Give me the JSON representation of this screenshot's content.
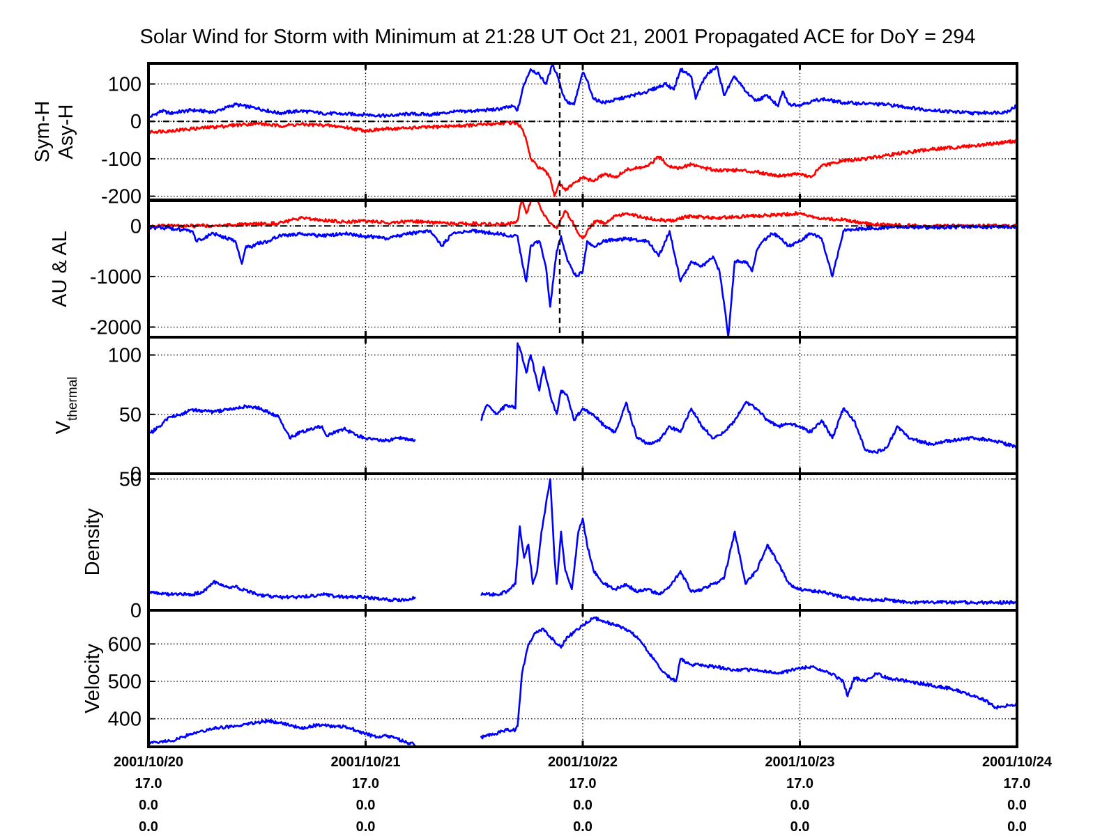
{
  "chart_data": {
    "title": "Solar Wind for Storm with Minimum at 21:28 UT Oct 21, 2001  Propagated ACE for DoY = 294",
    "type": "line",
    "grid": true,
    "x_tick_lines": [
      [
        "2001/10/20",
        "17.0",
        "0.0",
        "0.0"
      ],
      [
        "2001/10/21",
        "17.0",
        "0.0",
        "0.0"
      ],
      [
        "2001/10/22",
        "17.0",
        "0.0",
        "0.0"
      ],
      [
        "2001/10/23",
        "17.0",
        "0.0",
        "0.0"
      ],
      [
        "2001/10/24",
        "17.0",
        "0.0",
        "0.0"
      ]
    ],
    "xlim_days": [
      0,
      4
    ],
    "storm_minimum_day": 1.894,
    "panels": [
      {
        "ylabel_lines": [
          "Sym-H",
          "Asy-H"
        ],
        "ylim": [
          -210,
          155
        ],
        "yticks": [
          100,
          0,
          -100,
          -200
        ],
        "zero_line": true,
        "series": [
          {
            "color": "#0000ff",
            "x": [
              0.0,
              0.06,
              0.1,
              0.2,
              0.3,
              0.4,
              0.5,
              0.6,
              0.7,
              0.8,
              0.9,
              1.0,
              1.1,
              1.2,
              1.3,
              1.4,
              1.5,
              1.6,
              1.68,
              1.7,
              1.73,
              1.76,
              1.8,
              1.83,
              1.86,
              1.88,
              1.91,
              1.93,
              1.96,
              2.0,
              2.02,
              2.05,
              2.1,
              2.2,
              2.3,
              2.38,
              2.42,
              2.45,
              2.5,
              2.52,
              2.55,
              2.58,
              2.62,
              2.65,
              2.7,
              2.75,
              2.78,
              2.8,
              2.85,
              2.9,
              2.92,
              2.95,
              3.0,
              3.1,
              3.2,
              3.4,
              3.6,
              3.8,
              3.95,
              4.0
            ],
            "y": [
              10,
              28,
              22,
              30,
              25,
              45,
              35,
              22,
              28,
              22,
              20,
              18,
              15,
              20,
              18,
              25,
              28,
              32,
              40,
              30,
              100,
              140,
              125,
              100,
              150,
              130,
              70,
              50,
              45,
              130,
              110,
              60,
              50,
              65,
              80,
              100,
              85,
              140,
              120,
              60,
              105,
              130,
              145,
              70,
              120,
              80,
              65,
              55,
              70,
              40,
              80,
              45,
              45,
              60,
              50,
              45,
              30,
              22,
              25,
              42
            ]
          },
          {
            "color": "#ff0000",
            "x": [
              0.0,
              0.1,
              0.2,
              0.3,
              0.4,
              0.5,
              0.6,
              0.7,
              0.8,
              0.9,
              1.0,
              1.1,
              1.2,
              1.3,
              1.4,
              1.5,
              1.6,
              1.68,
              1.7,
              1.72,
              1.74,
              1.76,
              1.79,
              1.82,
              1.85,
              1.87,
              1.89,
              1.92,
              1.95,
              2.0,
              2.05,
              2.1,
              2.15,
              2.2,
              2.3,
              2.35,
              2.4,
              2.45,
              2.5,
              2.6,
              2.7,
              2.8,
              2.9,
              3.0,
              3.05,
              3.1,
              3.2,
              3.3,
              3.4,
              3.6,
              3.8,
              4.0
            ],
            "y": [
              -28,
              -25,
              -20,
              -15,
              -10,
              -5,
              -12,
              -8,
              -10,
              -15,
              -25,
              -20,
              -18,
              -15,
              -12,
              -10,
              -6,
              -3,
              -5,
              -20,
              -50,
              -100,
              -120,
              -130,
              -150,
              -200,
              -165,
              -185,
              -170,
              -150,
              -160,
              -140,
              -150,
              -130,
              -120,
              -95,
              -120,
              -125,
              -115,
              -130,
              -130,
              -135,
              -145,
              -140,
              -150,
              -120,
              -105,
              -100,
              -90,
              -75,
              -65,
              -52
            ]
          }
        ]
      },
      {
        "ylabel_lines": [
          "AU & AL"
        ],
        "ylim": [
          -2200,
          500
        ],
        "yticks": [
          0,
          -1000,
          -2000
        ],
        "zero_line": true,
        "series": [
          {
            "color": "#ff0000",
            "x": [
              0.0,
              0.2,
              0.4,
              0.6,
              0.7,
              0.8,
              0.9,
              1.0,
              1.1,
              1.2,
              1.3,
              1.4,
              1.5,
              1.6,
              1.68,
              1.7,
              1.72,
              1.74,
              1.78,
              1.81,
              1.85,
              1.88,
              1.9,
              1.92,
              1.95,
              1.98,
              2.0,
              2.03,
              2.06,
              2.1,
              2.15,
              2.2,
              2.3,
              2.4,
              2.5,
              2.6,
              2.7,
              2.8,
              2.9,
              3.0,
              3.1,
              3.2,
              3.3,
              3.4,
              3.6,
              3.8,
              4.0
            ],
            "y": [
              0,
              0,
              20,
              60,
              150,
              120,
              80,
              100,
              60,
              90,
              70,
              40,
              50,
              30,
              50,
              100,
              550,
              250,
              700,
              300,
              50,
              -50,
              150,
              300,
              100,
              -150,
              -250,
              -50,
              100,
              60,
              200,
              250,
              150,
              100,
              200,
              150,
              180,
              200,
              220,
              250,
              150,
              120,
              50,
              20,
              0,
              0,
              0
            ]
          },
          {
            "color": "#0000ff",
            "x": [
              0.0,
              0.1,
              0.2,
              0.22,
              0.3,
              0.4,
              0.43,
              0.45,
              0.48,
              0.5,
              0.55,
              0.6,
              0.7,
              0.8,
              0.9,
              1.0,
              1.1,
              1.2,
              1.3,
              1.35,
              1.4,
              1.5,
              1.6,
              1.68,
              1.7,
              1.72,
              1.74,
              1.76,
              1.8,
              1.83,
              1.85,
              1.88,
              1.9,
              1.93,
              1.97,
              2.0,
              2.02,
              2.05,
              2.1,
              2.2,
              2.3,
              2.35,
              2.4,
              2.45,
              2.5,
              2.55,
              2.6,
              2.63,
              2.65,
              2.67,
              2.7,
              2.75,
              2.78,
              2.8,
              2.83,
              2.87,
              2.9,
              2.95,
              3.0,
              3.05,
              3.1,
              3.15,
              3.2,
              3.3,
              3.4,
              3.6,
              3.8,
              4.0
            ],
            "y": [
              -30,
              -50,
              -100,
              -300,
              -150,
              -300,
              -750,
              -400,
              -400,
              -350,
              -300,
              -200,
              -150,
              -200,
              -150,
              -200,
              -250,
              -150,
              -100,
              -400,
              -150,
              -100,
              -150,
              -200,
              -200,
              -700,
              -1100,
              -400,
              -300,
              -800,
              -1600,
              -500,
              -200,
              -700,
              -1000,
              -900,
              -300,
              -400,
              -300,
              -250,
              -300,
              -600,
              -100,
              -1100,
              -700,
              -800,
              -600,
              -900,
              -1500,
              -2200,
              -700,
              -700,
              -900,
              -500,
              -300,
              -150,
              -200,
              -400,
              -300,
              -150,
              -250,
              -1000,
              -100,
              -50,
              -30,
              -30,
              -20,
              -20
            ]
          }
        ]
      },
      {
        "ylabel_lines": [
          "V",
          "thermal"
        ],
        "ylim": [
          0,
          115
        ],
        "yticks": [
          100,
          50,
          0
        ],
        "zero_line": false,
        "series": [
          {
            "color": "#0000ff",
            "x": [
              0.0,
              0.05,
              0.1,
              0.15,
              0.2,
              0.3,
              0.4,
              0.45,
              0.5,
              0.6,
              0.65,
              0.7,
              0.8,
              0.82,
              0.9,
              0.95,
              1.0,
              1.05,
              1.1,
              1.15,
              1.2,
              1.23
            ],
            "y": [
              33,
              40,
              48,
              50,
              54,
              52,
              55,
              57,
              56,
              48,
              30,
              35,
              40,
              32,
              38,
              33,
              30,
              29,
              28,
              30,
              29,
              28
            ]
          },
          {
            "color": "#0000ff",
            "x": [
              1.53,
              1.56,
              1.6,
              1.65,
              1.69,
              1.7,
              1.72,
              1.74,
              1.76,
              1.8,
              1.82,
              1.84,
              1.86,
              1.88,
              1.9,
              1.93,
              1.96,
              2.0,
              2.05,
              2.1,
              2.15,
              2.2,
              2.25,
              2.3,
              2.35,
              2.4,
              2.45,
              2.5,
              2.55,
              2.6,
              2.65,
              2.7,
              2.75,
              2.8,
              2.85,
              2.9,
              2.95,
              3.0,
              3.05,
              3.1,
              3.15,
              3.2,
              3.25,
              3.3,
              3.35,
              3.4,
              3.45,
              3.5,
              3.6,
              3.7,
              3.8,
              3.9,
              4.0
            ],
            "y": [
              45,
              58,
              50,
              58,
              55,
              110,
              100,
              85,
              100,
              70,
              90,
              75,
              60,
              50,
              70,
              65,
              45,
              55,
              50,
              40,
              35,
              60,
              30,
              25,
              28,
              40,
              35,
              55,
              40,
              30,
              35,
              45,
              60,
              55,
              45,
              40,
              42,
              40,
              35,
              45,
              30,
              55,
              45,
              20,
              18,
              22,
              40,
              30,
              25,
              28,
              30,
              28,
              22
            ]
          }
        ]
      },
      {
        "ylabel_lines": [
          "Density"
        ],
        "ylim": [
          0,
          52
        ],
        "yticks": [
          50,
          0
        ],
        "zero_line": false,
        "series": [
          {
            "color": "#0000ff",
            "x": [
              0.0,
              0.1,
              0.2,
              0.25,
              0.3,
              0.35,
              0.4,
              0.5,
              0.6,
              0.7,
              0.8,
              0.9,
              1.0,
              1.1,
              1.2,
              1.23
            ],
            "y": [
              7,
              6,
              6,
              7,
              11,
              9,
              9,
              6,
              5,
              5,
              6,
              5,
              5,
              4,
              4,
              5
            ]
          },
          {
            "color": "#0000ff",
            "x": [
              1.53,
              1.6,
              1.65,
              1.69,
              1.71,
              1.73,
              1.75,
              1.77,
              1.79,
              1.81,
              1.83,
              1.85,
              1.87,
              1.88,
              1.9,
              1.92,
              1.95,
              1.98,
              2.0,
              2.02,
              2.05,
              2.1,
              2.15,
              2.2,
              2.25,
              2.3,
              2.35,
              2.4,
              2.45,
              2.5,
              2.55,
              2.6,
              2.65,
              2.7,
              2.75,
              2.8,
              2.85,
              2.9,
              2.95,
              3.0,
              3.1,
              3.2,
              3.3,
              3.4,
              3.5,
              3.6,
              3.8,
              4.0
            ],
            "y": [
              6,
              6,
              7,
              10,
              32,
              20,
              25,
              10,
              15,
              30,
              40,
              50,
              20,
              10,
              30,
              15,
              8,
              30,
              35,
              25,
              15,
              10,
              8,
              10,
              7,
              8,
              6,
              9,
              15,
              7,
              8,
              10,
              12,
              30,
              10,
              15,
              25,
              18,
              10,
              8,
              7,
              5,
              4,
              4,
              3,
              3,
              3,
              3
            ]
          }
        ]
      },
      {
        "ylabel_lines": [
          "Velocity"
        ],
        "ylim": [
          325,
          690
        ],
        "yticks": [
          600,
          500,
          400
        ],
        "zero_line": false,
        "series": [
          {
            "color": "#0000ff",
            "x": [
              0.0,
              0.1,
              0.2,
              0.3,
              0.4,
              0.5,
              0.55,
              0.6,
              0.7,
              0.75,
              0.8,
              0.85,
              0.9,
              0.95,
              1.0,
              1.05,
              1.1,
              1.15,
              1.2,
              1.23
            ],
            "y": [
              335,
              340,
              360,
              375,
              380,
              390,
              395,
              390,
              375,
              380,
              385,
              380,
              380,
              370,
              360,
              350,
              355,
              345,
              335,
              330
            ]
          },
          {
            "color": "#0000ff",
            "x": [
              1.53,
              1.6,
              1.65,
              1.69,
              1.7,
              1.72,
              1.75,
              1.78,
              1.82,
              1.85,
              1.88,
              1.9,
              1.93,
              1.96,
              2.0,
              2.05,
              2.1,
              2.15,
              2.2,
              2.25,
              2.3,
              2.35,
              2.4,
              2.43,
              2.45,
              2.5,
              2.6,
              2.7,
              2.8,
              2.9,
              3.0,
              3.05,
              3.1,
              3.15,
              3.2,
              3.22,
              3.25,
              3.3,
              3.35,
              3.4,
              3.5,
              3.6,
              3.7,
              3.8,
              3.85,
              3.9,
              4.0
            ],
            "y": [
              350,
              360,
              370,
              370,
              380,
              520,
              600,
              630,
              640,
              620,
              600,
              590,
              620,
              630,
              650,
              670,
              660,
              650,
              640,
              620,
              580,
              540,
              510,
              500,
              560,
              545,
              540,
              530,
              530,
              520,
              535,
              540,
              530,
              520,
              500,
              460,
              510,
              500,
              520,
              510,
              500,
              490,
              480,
              460,
              450,
              430,
              440
            ]
          }
        ]
      }
    ]
  }
}
